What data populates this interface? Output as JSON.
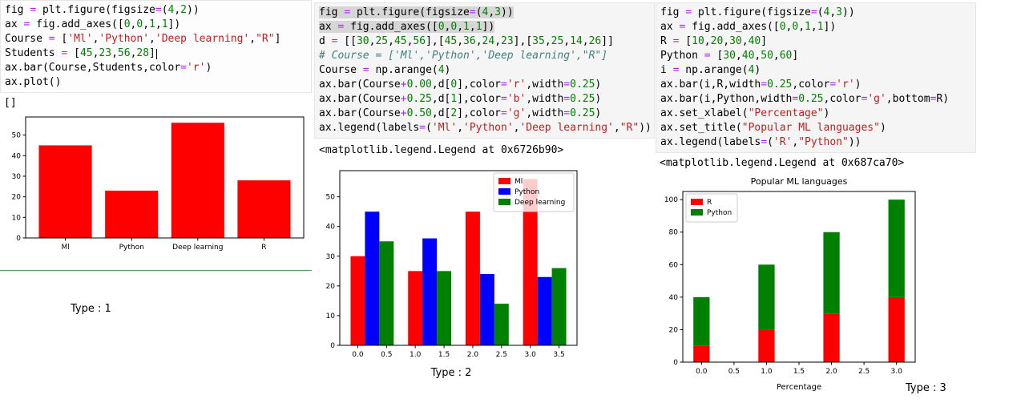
{
  "page": {
    "background": "#ffffff"
  },
  "cells": [
    {
      "code_lines": [
        "fig = plt.figure(figsize=(4,2))",
        "ax = fig.add_axes([0,0,1,1])",
        "Course = ['Ml','Python','Deep learning',\"R\"]",
        "Students = [45,23,56,28]",
        "ax.bar(Course,Students,color='r')",
        "ax.plot()"
      ],
      "highlighted_lines": [],
      "cursor_line": 3,
      "output_text": "[]",
      "caption": "Type : 1"
    },
    {
      "code_lines": [
        "fig = plt.figure(figsize=(4,3))",
        "ax = fig.add_axes([0,0,1,1])",
        "d = [[30,25,45,56],[45,36,24,23],[35,25,14,26]]",
        "# Course = ['Ml','Python','Deep learning',\"R\"]",
        "Course = np.arange(4)",
        "ax.bar(Course+0.00,d[0],color='r',width=0.25)",
        "ax.bar(Course+0.25,d[1],color='b',width=0.25)",
        "ax.bar(Course+0.50,d[2],color='g',width=0.25)",
        "ax.legend(labels=('Ml','Python','Deep learning',\"R\"))"
      ],
      "highlighted_lines": [
        0,
        1
      ],
      "cursor_line": -1,
      "output_text": "<matplotlib.legend.Legend at 0x6726b90>",
      "caption": "Type : 2"
    },
    {
      "code_lines": [
        "fig = plt.figure(figsize=(4,3))",
        "ax = fig.add_axes([0,0,1,1])",
        "R = [10,20,30,40]",
        "Python = [30,40,50,60]",
        "i = np.arange(4)",
        "ax.bar(i,R,width=0.25,color='r')",
        "ax.bar(i,Python,width=0.25,color='g',bottom=R)",
        "ax.set_xlabel(\"Percentage\")",
        "ax.set_title(\"Popular ML languages\")",
        "ax.legend(labels=('R',\"Python\"))"
      ],
      "highlighted_lines": [],
      "cursor_line": -1,
      "output_text": "<matplotlib.legend.Legend at 0x687ca70>",
      "caption": "Type : 3"
    }
  ],
  "chart_data": [
    {
      "type": "bar",
      "categories": [
        "Ml",
        "Python",
        "Deep learning",
        "R"
      ],
      "values": [
        45,
        23,
        56,
        28
      ],
      "bar_color": "#ff0000",
      "title": "",
      "xlabel": "",
      "ylabel": "",
      "xlim": [
        -0.6,
        3.6
      ],
      "ylim": [
        0,
        58.8
      ],
      "yticks": [
        0,
        10,
        20,
        30,
        40,
        50
      ],
      "grid": false
    },
    {
      "type": "bar",
      "x": [
        0,
        1,
        2,
        3
      ],
      "bar_width": 0.25,
      "group_offsets": [
        0,
        0.25,
        0.5
      ],
      "series": [
        {
          "name": "Ml",
          "color": "#ff0000",
          "values": [
            30,
            25,
            45,
            56
          ]
        },
        {
          "name": "Python",
          "color": "#0000ff",
          "values": [
            45,
            36,
            24,
            23
          ]
        },
        {
          "name": "Deep learning",
          "color": "#008000",
          "values": [
            35,
            25,
            14,
            26
          ]
        }
      ],
      "title": "",
      "xlabel": "",
      "ylabel": "",
      "xlim": [
        -0.3125,
        3.8125
      ],
      "ylim": [
        0,
        58.8
      ],
      "xticks": [
        0,
        0.5,
        1,
        1.5,
        2,
        2.5,
        3,
        3.5
      ],
      "yticks": [
        0,
        10,
        20,
        30,
        40,
        50
      ],
      "legend": {
        "position": "top-right"
      },
      "grid": false
    },
    {
      "type": "stacked-bar",
      "x": [
        0,
        1,
        2,
        3
      ],
      "bar_width": 0.25,
      "series": [
        {
          "name": "R",
          "color": "#ff0000",
          "values": [
            10,
            20,
            30,
            40
          ]
        },
        {
          "name": "Python",
          "color": "#008000",
          "values": [
            30,
            40,
            50,
            60
          ]
        }
      ],
      "title": "Popular ML languages",
      "xlabel": "Percentage",
      "ylabel": "",
      "xlim": [
        -0.2875,
        3.2875
      ],
      "ylim": [
        0,
        105
      ],
      "xticks": [
        0,
        0.5,
        1,
        1.5,
        2,
        2.5,
        3
      ],
      "yticks": [
        0,
        20,
        40,
        60,
        80,
        100
      ],
      "legend": {
        "position": "top-left"
      },
      "grid": false
    }
  ],
  "colors": {
    "code_string": "#ba2121",
    "code_number": "#008000",
    "code_operator": "#aa22ff",
    "code_comment": "#408080",
    "cell_background": "#f5f5f5",
    "selection_highlight": "#d6d6d6",
    "active_cell_border": "#49a25e",
    "bar_red": "#ff0000",
    "bar_blue": "#0000ff",
    "bar_green": "#008000"
  }
}
